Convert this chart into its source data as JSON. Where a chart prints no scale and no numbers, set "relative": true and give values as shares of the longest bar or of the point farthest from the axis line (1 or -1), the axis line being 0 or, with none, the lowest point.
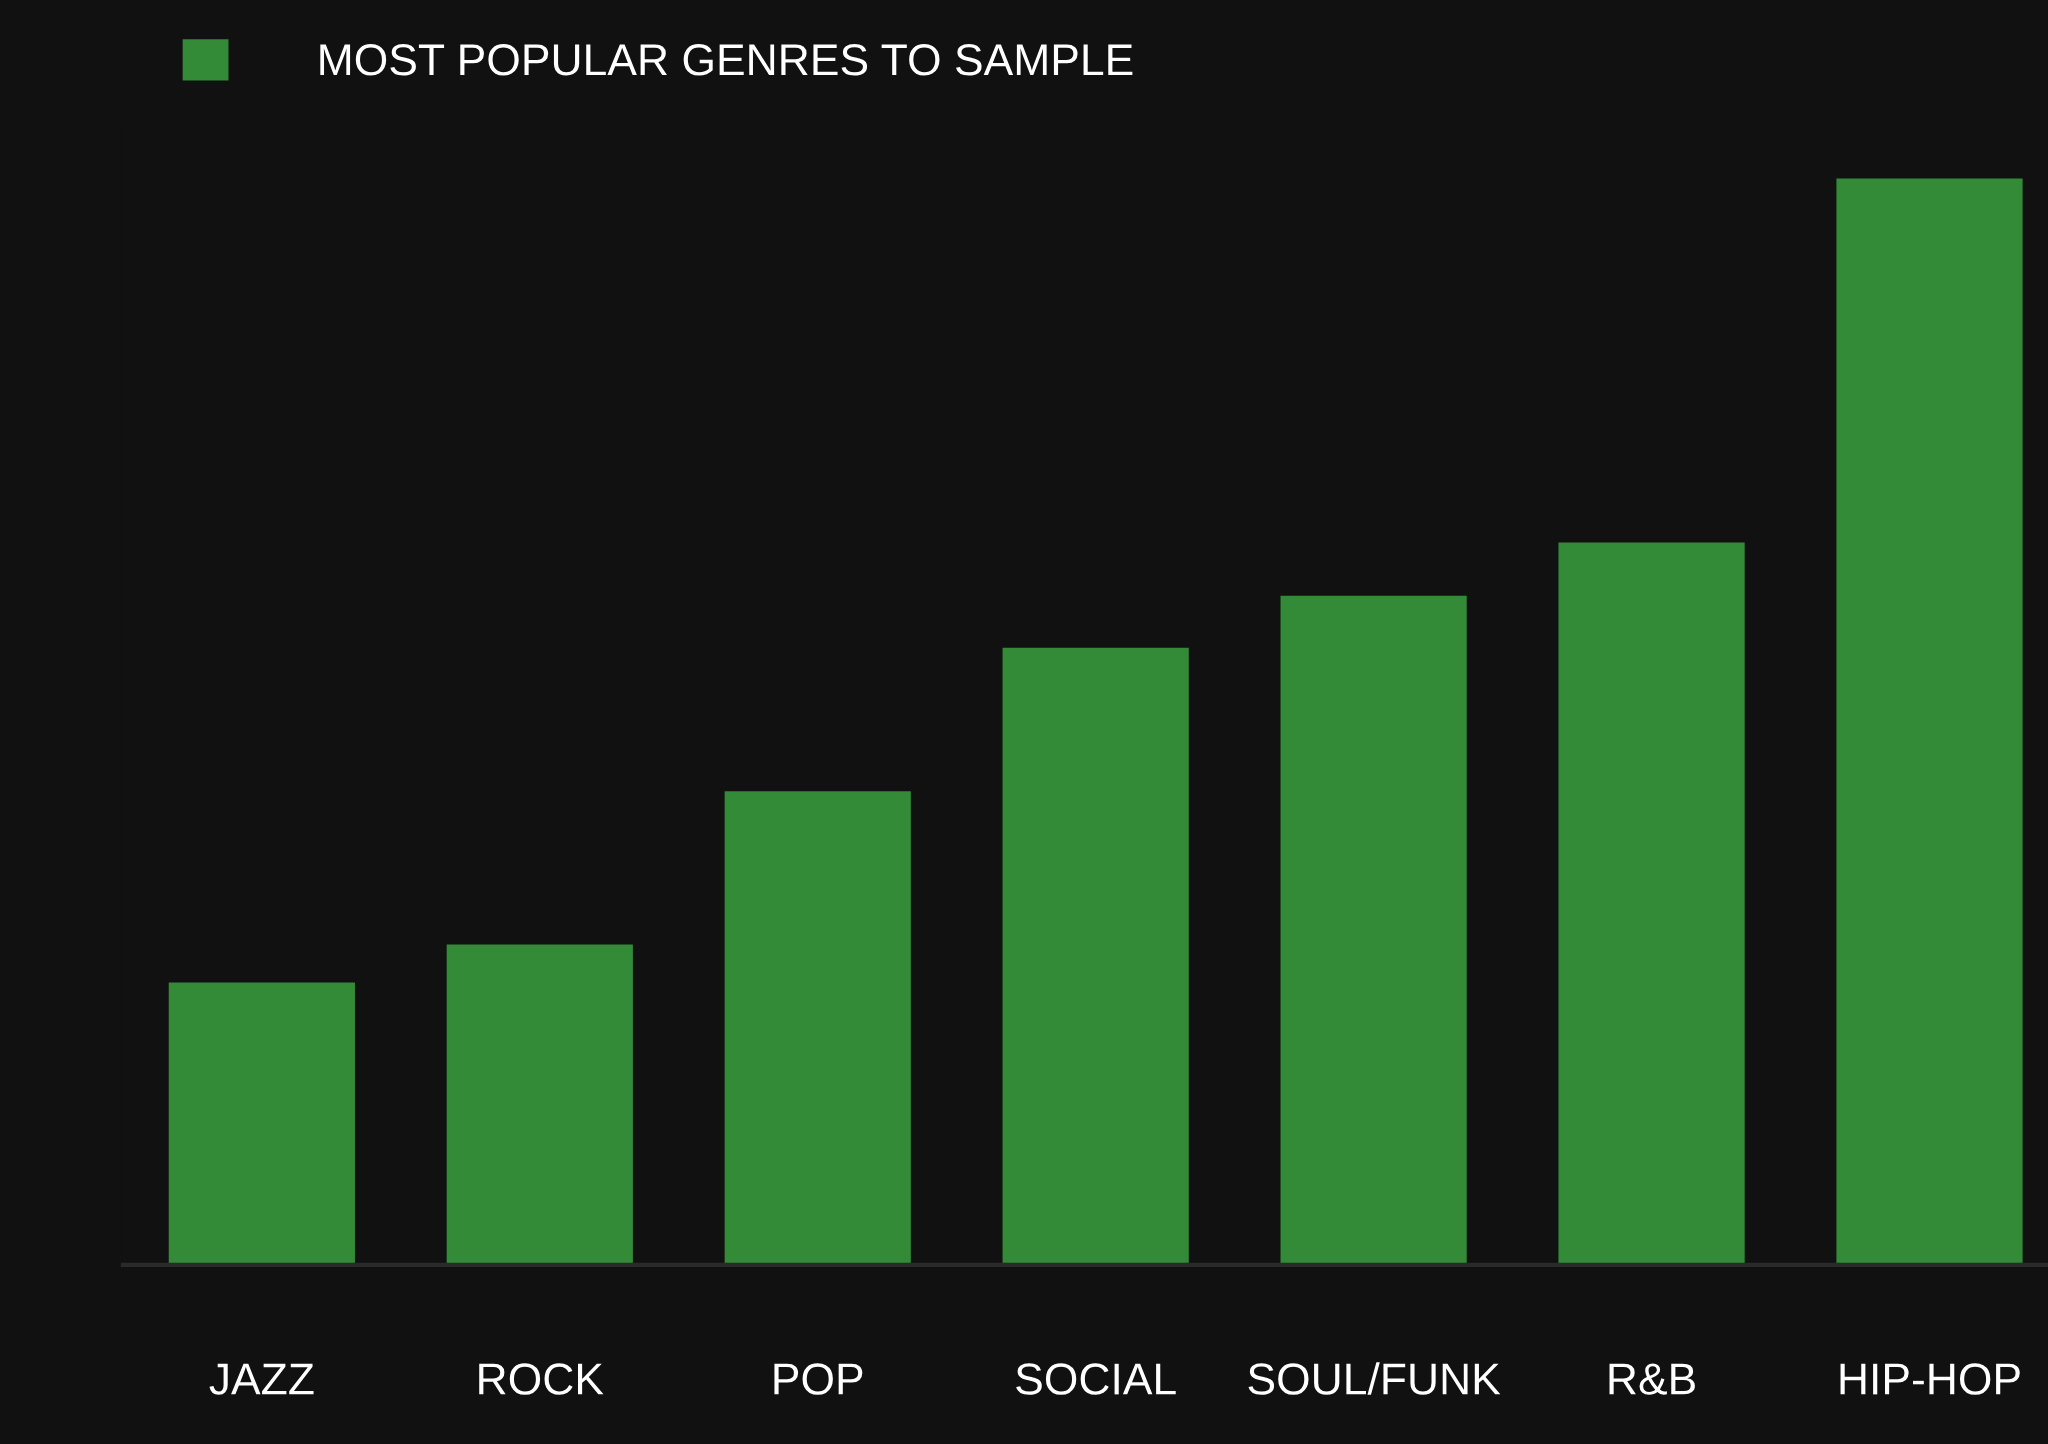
{
  "chart_data": {
    "type": "bar",
    "relative": true,
    "categories": [
      "JAZZ",
      "ROCK",
      "POP",
      "SOCIAL",
      "SOUL/FUNK",
      "R&B",
      "HIP-HOP"
    ],
    "series": [
      {
        "name": "MOST POPULAR GENRES TO SAMPLE",
        "color": "#338a37",
        "values": [
          0.26,
          0.295,
          0.436,
          0.568,
          0.616,
          0.665,
          1
        ]
      }
    ],
    "legend": "top left",
    "grid": false
  }
}
